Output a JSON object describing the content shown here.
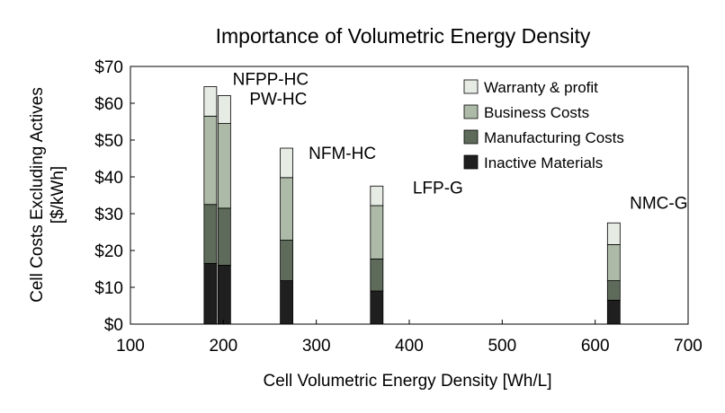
{
  "chart_data": {
    "type": "bar",
    "title": "Importance of Volumetric Energy Density",
    "xlabel": "Cell Volumetric Energy Density [Wh/L]",
    "ylabel_line1": "Cell Costs Excluding Actives",
    "ylabel_line2": "[$/kWh]",
    "xlim": [
      100,
      700
    ],
    "ylim": [
      0,
      70
    ],
    "x_ticks": [
      100,
      200,
      300,
      400,
      500,
      600,
      700
    ],
    "y_ticks": [
      0,
      10,
      20,
      30,
      40,
      50,
      60,
      70
    ],
    "y_tick_labels": [
      "$0",
      "$10",
      "$20",
      "$30",
      "$40",
      "$50",
      "$60",
      "$70"
    ],
    "legend_position": "top-right",
    "series": [
      {
        "name": "Inactive Materials",
        "color": "#1f1f1f"
      },
      {
        "name": "Manufacturing Costs",
        "color": "#5e6b5a"
      },
      {
        "name": "Business Costs",
        "color": "#aebaa8"
      },
      {
        "name": "Warranty & profit",
        "color": "#e6ebe4"
      }
    ],
    "legend_order": [
      "Warranty & profit",
      "Business Costs",
      "Manufacturing Costs",
      "Inactive Materials"
    ],
    "bars": [
      {
        "name": "NFPP-HC",
        "x": 186,
        "values": [
          16.5,
          16.0,
          24.0,
          8.0
        ]
      },
      {
        "name": "PW-HC",
        "x": 201,
        "values": [
          16.0,
          15.5,
          23.0,
          7.6
        ]
      },
      {
        "name": "NFM-HC",
        "x": 268,
        "values": [
          11.8,
          11.0,
          17.0,
          8.0
        ]
      },
      {
        "name": "LFP-G",
        "x": 365,
        "values": [
          9.0,
          8.7,
          14.5,
          5.3
        ]
      },
      {
        "name": "NMC-G",
        "x": 620,
        "values": [
          6.5,
          5.3,
          9.8,
          5.9
        ]
      }
    ]
  }
}
